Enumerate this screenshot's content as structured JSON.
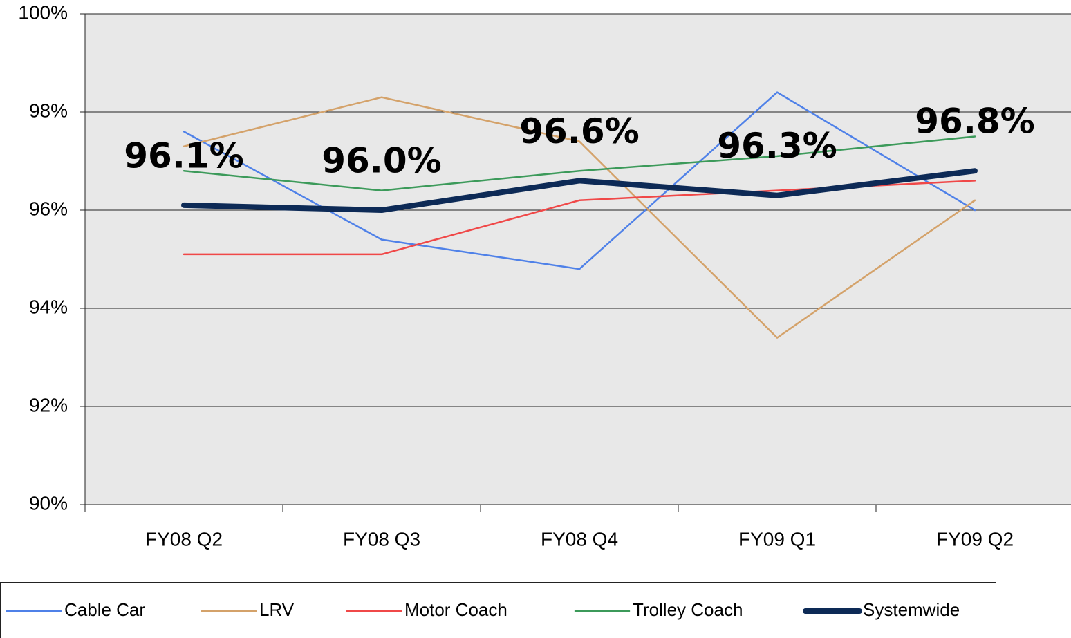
{
  "chart_data": {
    "type": "line",
    "categories": [
      "FY08 Q2",
      "FY08 Q3",
      "FY08 Q4",
      "FY09 Q1",
      "FY09 Q2"
    ],
    "series": [
      {
        "name": "Cable Car",
        "color": "#4f81e8",
        "values": [
          97.6,
          95.4,
          94.8,
          98.4,
          96.0
        ]
      },
      {
        "name": "LRV",
        "color": "#d4a26a",
        "values": [
          97.3,
          98.3,
          97.4,
          93.4,
          96.2
        ]
      },
      {
        "name": "Motor Coach",
        "color": "#f04848",
        "values": [
          95.1,
          95.1,
          96.2,
          96.4,
          96.6
        ]
      },
      {
        "name": "Trolley Coach",
        "color": "#3c9a5a",
        "values": [
          96.8,
          96.4,
          96.8,
          97.1,
          97.5
        ]
      },
      {
        "name": "Systemwide",
        "color": "#0d2a56",
        "values": [
          96.1,
          96.0,
          96.6,
          96.3,
          96.8
        ],
        "value_labels": [
          "96.1%",
          "96.0%",
          "96.6%",
          "96.3%",
          "96.8%"
        ]
      }
    ],
    "ylim": [
      90,
      100
    ],
    "yticks": [
      {
        "value": 90,
        "label": "90%"
      },
      {
        "value": 92,
        "label": "92%"
      },
      {
        "value": 94,
        "label": "94%"
      },
      {
        "value": 96,
        "label": "96%"
      },
      {
        "value": 98,
        "label": "98%"
      },
      {
        "value": 100,
        "label": "100%"
      }
    ],
    "grid": true,
    "legend": "bottom"
  }
}
